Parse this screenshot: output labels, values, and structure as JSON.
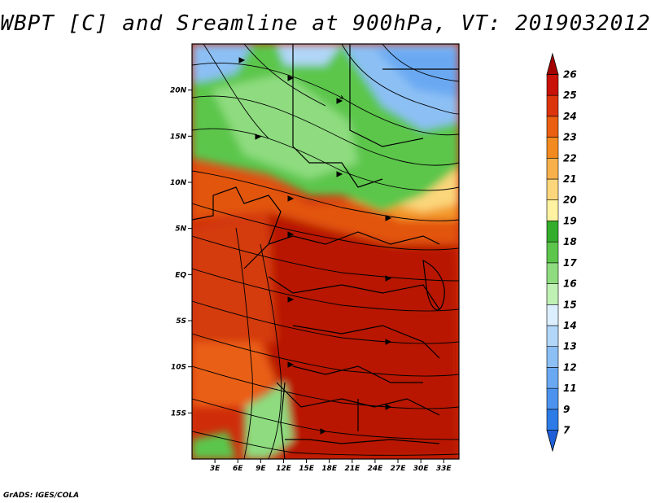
{
  "title": "WBPT [C] and Sreamline at 900hPa, VT: 2019032012",
  "credit": "GrADS: IGES/COLA",
  "map": {
    "lat_labels": [
      "20N",
      "15N",
      "10N",
      "5N",
      "EQ",
      "5S",
      "10S",
      "15S"
    ],
    "lat_values": [
      20,
      15,
      10,
      5,
      0,
      -5,
      -10,
      -15
    ],
    "lon_labels": [
      "3E",
      "6E",
      "9E",
      "12E",
      "15E",
      "18E",
      "21E",
      "24E",
      "27E",
      "30E",
      "33E"
    ],
    "lon_values": [
      3,
      6,
      9,
      12,
      15,
      18,
      21,
      24,
      27,
      30,
      33
    ],
    "lon_range": [
      0,
      35
    ],
    "lat_range": [
      -20,
      25
    ]
  },
  "colorbar": {
    "labels": [
      "7",
      "9",
      "11",
      "12",
      "13",
      "14",
      "15",
      "16",
      "17",
      "18",
      "19",
      "20",
      "21",
      "22",
      "23",
      "24",
      "25",
      "26"
    ],
    "colors": [
      "#1e5fd8",
      "#2c7be6",
      "#4b93ee",
      "#6aa9f2",
      "#8cc0f5",
      "#b1d6f8",
      "#dcefff",
      "#bff0b4",
      "#8edc7f",
      "#5cc64c",
      "#34ad2c",
      "#fff2a0",
      "#fcd67a",
      "#f8b04a",
      "#f28a1f",
      "#ea5f12",
      "#dc340c",
      "#c81108",
      "#a30000"
    ]
  }
}
